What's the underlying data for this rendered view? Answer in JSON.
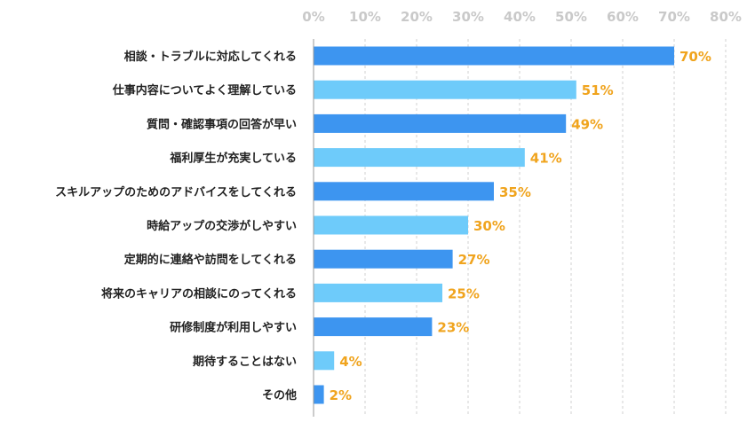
{
  "chart_data": {
    "type": "bar",
    "orientation": "horizontal",
    "categories": [
      "相談・トラブルに対応してくれる",
      "仕事内容についてよく理解している",
      "質問・確認事項の回答が早い",
      "福利厚生が充実している",
      "スキルアップのためのアドバイスをしてくれる",
      "時給アップの交渉がしやすい",
      "定期的に連絡や訪問をしてくれる",
      "将来のキャリアの相談にのってくれる",
      "研修制度が利用しやすい",
      "期待することはない",
      "その他"
    ],
    "values": [
      70,
      51,
      49,
      41,
      35,
      30,
      27,
      25,
      23,
      4,
      2
    ],
    "value_labels": [
      "70%",
      "51%",
      "49%",
      "41%",
      "35%",
      "30%",
      "27%",
      "25%",
      "23%",
      "4%",
      "2%"
    ],
    "xlim": [
      0,
      80
    ],
    "x_ticks": [
      "0%",
      "10%",
      "20%",
      "30%",
      "40%",
      "50%",
      "60%",
      "70%",
      "80%"
    ],
    "x_axis_position": "top",
    "grid": true,
    "title": "",
    "xlabel": "",
    "ylabel": "",
    "colors": {
      "bar_dark": "#3d95f0",
      "bar_light": "#6ecbfa",
      "value_label": "#f0a41e",
      "tick_label": "#c9c9c9",
      "category_label": "#222222"
    }
  }
}
